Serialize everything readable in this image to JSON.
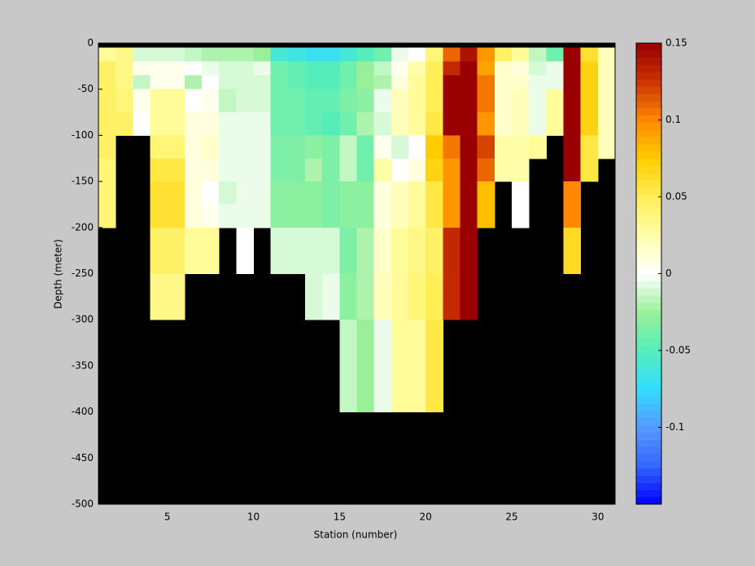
{
  "chart_data": {
    "type": "heatmap",
    "xlabel": "Station (number)",
    "ylabel": "Depth (meter)",
    "x_edges": [
      1,
      2,
      3,
      4,
      5,
      6,
      7,
      8,
      9,
      10,
      11,
      12,
      13,
      14,
      15,
      16,
      17,
      18,
      19,
      20,
      21,
      22,
      23,
      24,
      25,
      26,
      27,
      28,
      29,
      30,
      31
    ],
    "y_edges": [
      0,
      -5,
      -20,
      -35,
      -50,
      -75,
      -100,
      -125,
      -150,
      -175,
      -200,
      -225,
      -250,
      -275,
      -300,
      -325,
      -350,
      -375,
      -400,
      -425,
      -450,
      -475,
      -500
    ],
    "z": [
      [
        null,
        0.03,
        0.045,
        0.045,
        0.045,
        0.045,
        0.045,
        0.04,
        0.04,
        0.04,
        null,
        null,
        null,
        null,
        null,
        null,
        null,
        null,
        null,
        null,
        null,
        null
      ],
      [
        null,
        0.035,
        0.035,
        0.035,
        0.04,
        0.045,
        null,
        null,
        null,
        null,
        null,
        null,
        null,
        null,
        null,
        null,
        null,
        null,
        null,
        null,
        null,
        null
      ],
      [
        null,
        -0.01,
        0.005,
        -0.015,
        0.005,
        0,
        null,
        null,
        null,
        null,
        null,
        null,
        null,
        null,
        null,
        null,
        null,
        null,
        null,
        null,
        null,
        null
      ],
      [
        null,
        -0.01,
        0.005,
        0.005,
        0.03,
        0.03,
        0.04,
        0.055,
        0.06,
        0.06,
        0.045,
        0.045,
        0.035,
        0.035,
        null,
        null,
        null,
        null,
        null,
        null,
        null,
        null
      ],
      [
        null,
        -0.01,
        0.005,
        0.005,
        0.03,
        0.03,
        0.04,
        0.055,
        0.06,
        0.06,
        0.045,
        0.045,
        0.035,
        0.035,
        null,
        null,
        null,
        null,
        null,
        null,
        null,
        null
      ],
      [
        null,
        -0.015,
        0,
        -0.02,
        0,
        0.01,
        0.01,
        0.01,
        0.01,
        0.01,
        0.03,
        0.03,
        null,
        null,
        null,
        null,
        null,
        null,
        null,
        null,
        null,
        null
      ],
      [
        null,
        -0.02,
        -0.005,
        0,
        0.005,
        0.01,
        0.015,
        0.01,
        0,
        0.005,
        0.03,
        0.03,
        null,
        null,
        null,
        null,
        null,
        null,
        null,
        null,
        null,
        null
      ],
      [
        null,
        -0.02,
        -0.01,
        -0.01,
        -0.015,
        -0.005,
        -0.005,
        -0.005,
        -0.01,
        -0.005,
        null,
        null,
        null,
        null,
        null,
        null,
        null,
        null,
        null,
        null,
        null,
        null
      ],
      [
        null,
        -0.02,
        -0.01,
        -0.01,
        -0.01,
        -0.005,
        -0.005,
        -0.005,
        -0.005,
        -0.005,
        0,
        0,
        null,
        null,
        null,
        null,
        null,
        null,
        null,
        null,
        null,
        null
      ],
      [
        null,
        -0.025,
        -0.005,
        -0.01,
        -0.01,
        -0.005,
        -0.005,
        -0.005,
        -0.005,
        -0.005,
        null,
        null,
        null,
        null,
        null,
        null,
        null,
        null,
        null,
        null,
        null,
        null
      ],
      [
        null,
        -0.06,
        -0.04,
        -0.04,
        -0.04,
        -0.04,
        -0.035,
        -0.035,
        -0.03,
        -0.03,
        -0.01,
        -0.01,
        null,
        null,
        null,
        null,
        null,
        null,
        null,
        null,
        null,
        null
      ],
      [
        null,
        -0.065,
        -0.045,
        -0.045,
        -0.04,
        -0.04,
        -0.035,
        -0.035,
        -0.03,
        -0.03,
        -0.01,
        -0.01,
        null,
        null,
        null,
        null,
        null,
        null,
        null,
        null,
        null,
        null
      ],
      [
        null,
        -0.07,
        -0.05,
        -0.05,
        -0.045,
        -0.045,
        -0.03,
        -0.02,
        -0.03,
        -0.03,
        -0.01,
        -0.01,
        -0.01,
        -0.01,
        null,
        null,
        null,
        null,
        null,
        null,
        null,
        null
      ],
      [
        null,
        -0.07,
        -0.05,
        -0.05,
        -0.045,
        -0.05,
        -0.035,
        -0.035,
        -0.035,
        -0.035,
        -0.01,
        -0.01,
        -0.005,
        -0.005,
        null,
        null,
        null,
        null,
        null,
        null,
        null,
        null
      ],
      [
        null,
        -0.06,
        -0.04,
        -0.04,
        -0.035,
        -0.04,
        -0.015,
        -0.015,
        -0.03,
        -0.03,
        -0.035,
        -0.035,
        -0.03,
        -0.03,
        -0.015,
        -0.015,
        -0.015,
        -0.015,
        null,
        null,
        null,
        null
      ],
      [
        null,
        -0.05,
        -0.025,
        -0.025,
        -0.03,
        -0.02,
        -0.04,
        -0.04,
        -0.03,
        -0.03,
        -0.02,
        -0.02,
        -0.02,
        -0.02,
        -0.025,
        -0.025,
        -0.025,
        -0.025,
        null,
        null,
        null,
        null
      ],
      [
        null,
        -0.04,
        -0.015,
        -0.02,
        -0.005,
        -0.01,
        0.005,
        0.025,
        0.01,
        0.01,
        0.015,
        0.015,
        0.02,
        0.02,
        -0.005,
        -0.005,
        -0.005,
        -0.005,
        null,
        null,
        null,
        null
      ],
      [
        null,
        -0.005,
        0.005,
        0.01,
        0.02,
        0.02,
        -0.01,
        0,
        0.02,
        0.02,
        0.03,
        0.03,
        0.03,
        0.03,
        0.03,
        0.03,
        0.03,
        0.03,
        null,
        null,
        null,
        null
      ],
      [
        null,
        0,
        0.025,
        0.03,
        0.03,
        0.03,
        0,
        0.01,
        0.03,
        0.03,
        0.035,
        0.035,
        0.04,
        0.04,
        0.03,
        0.03,
        0.03,
        0.03,
        null,
        null,
        null,
        null
      ],
      [
        null,
        0.04,
        0.05,
        0.05,
        0.05,
        0.055,
        0.075,
        0.07,
        0.055,
        0.055,
        0.045,
        0.045,
        0.05,
        0.05,
        0.055,
        0.055,
        0.055,
        0.055,
        null,
        null,
        null,
        null
      ],
      [
        null,
        0.11,
        0.13,
        0.15,
        0.15,
        0.15,
        0.105,
        0.095,
        0.095,
        0.095,
        0.13,
        0.13,
        0.13,
        0.13,
        null,
        null,
        null,
        null,
        null,
        null,
        null,
        null
      ],
      [
        null,
        0.14,
        0.15,
        0.15,
        0.15,
        0.15,
        0.15,
        0.15,
        0.15,
        0.15,
        0.15,
        0.15,
        0.15,
        0.15,
        null,
        null,
        null,
        null,
        null,
        null,
        null,
        null
      ],
      [
        null,
        0.095,
        0.09,
        0.105,
        0.105,
        0.095,
        0.12,
        0.11,
        0.08,
        0.08,
        null,
        null,
        null,
        null,
        null,
        null,
        null,
        null,
        null,
        null,
        null,
        null
      ],
      [
        null,
        0.045,
        0.015,
        0.015,
        0.015,
        0.015,
        0.025,
        0.025,
        null,
        null,
        null,
        null,
        null,
        null,
        null,
        null,
        null,
        null,
        null,
        null,
        null,
        null
      ],
      [
        null,
        0.03,
        0.01,
        0.015,
        0.02,
        0.02,
        0.025,
        0.025,
        0,
        0,
        null,
        null,
        null,
        null,
        null,
        null,
        null,
        null,
        null,
        null,
        null,
        null
      ],
      [
        null,
        -0.015,
        -0.01,
        -0.005,
        -0.005,
        -0.005,
        0.03,
        null,
        null,
        null,
        null,
        null,
        null,
        null,
        null,
        null,
        null,
        null,
        null,
        null,
        null,
        null
      ],
      [
        null,
        -0.04,
        -0.005,
        -0.005,
        0.03,
        0.03,
        null,
        null,
        null,
        null,
        null,
        null,
        null,
        null,
        null,
        null,
        null,
        null,
        null,
        null,
        null,
        null
      ],
      [
        null,
        0.15,
        0.15,
        0.15,
        0.15,
        0.15,
        0.15,
        0.15,
        0.1,
        0.1,
        0.065,
        0.065,
        null,
        null,
        null,
        null,
        null,
        null,
        null,
        null,
        null,
        null
      ],
      [
        null,
        0.06,
        0.07,
        0.07,
        0.07,
        0.07,
        0.055,
        0.055,
        null,
        null,
        null,
        null,
        null,
        null,
        null,
        null,
        null,
        null,
        null,
        null,
        null,
        null
      ],
      [
        null,
        0.02,
        0.02,
        0.02,
        0.02,
        0.02,
        0.02,
        null,
        null,
        null,
        null,
        null,
        null,
        null,
        null,
        null,
        null,
        null,
        null,
        null,
        null,
        null
      ]
    ],
    "xlim": [
      1,
      31
    ],
    "xticks": [
      5,
      10,
      15,
      20,
      25,
      30
    ],
    "ylim": [
      -500,
      0
    ],
    "yticks": [
      0,
      -50,
      -100,
      -150,
      -200,
      -250,
      -300,
      -350,
      -400,
      -450,
      -500
    ],
    "clim": [
      -0.15,
      0.15
    ],
    "cticks": [
      0.15,
      0.1,
      0.05,
      0,
      -0.05,
      -0.1
    ],
    "colormap": [
      "#0000ff",
      "#3366ff",
      "#5599ff",
      "#33ddff",
      "#55eebb",
      "#99f099",
      "#ffffff",
      "#ffffaa",
      "#ffee55",
      "#ffcc00",
      "#ff8800",
      "#cc3300",
      "#990000"
    ],
    "missing_color": "#000000"
  }
}
